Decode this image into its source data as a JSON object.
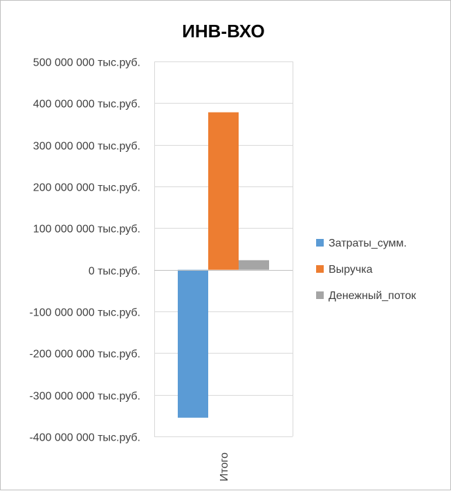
{
  "chart_data": {
    "type": "bar",
    "title": "ИНВ-ВХО",
    "xlabel": "",
    "ylabel": "",
    "categories": [
      "Итого"
    ],
    "series": [
      {
        "name": "Затраты_сумм.",
        "values": [
          -355000000
        ],
        "color": "#5b9bd5"
      },
      {
        "name": "Выручка",
        "values": [
          378000000
        ],
        "color": "#ed7d31"
      },
      {
        "name": "Денежный_поток",
        "values": [
          23000000
        ],
        "color": "#a5a5a5"
      }
    ],
    "ylim": [
      -400000000,
      500000000
    ],
    "yticks": [
      {
        "value": 500000000,
        "label": "500 000 000 тыс.руб."
      },
      {
        "value": 400000000,
        "label": "400 000 000 тыс.руб."
      },
      {
        "value": 300000000,
        "label": "300 000 000 тыс.руб."
      },
      {
        "value": 200000000,
        "label": "200 000 000 тыс.руб."
      },
      {
        "value": 100000000,
        "label": "100 000 000 тыс.руб."
      },
      {
        "value": 0,
        "label": "0 тыс.руб."
      },
      {
        "value": -100000000,
        "label": "-100 000 000 тыс.руб."
      },
      {
        "value": -200000000,
        "label": "-200 000 000 тыс.руб."
      },
      {
        "value": -300000000,
        "label": "-300 000 000 тыс.руб."
      },
      {
        "value": -400000000,
        "label": "-400 000 000 тыс.руб."
      }
    ],
    "grid": true,
    "legend": "right"
  }
}
